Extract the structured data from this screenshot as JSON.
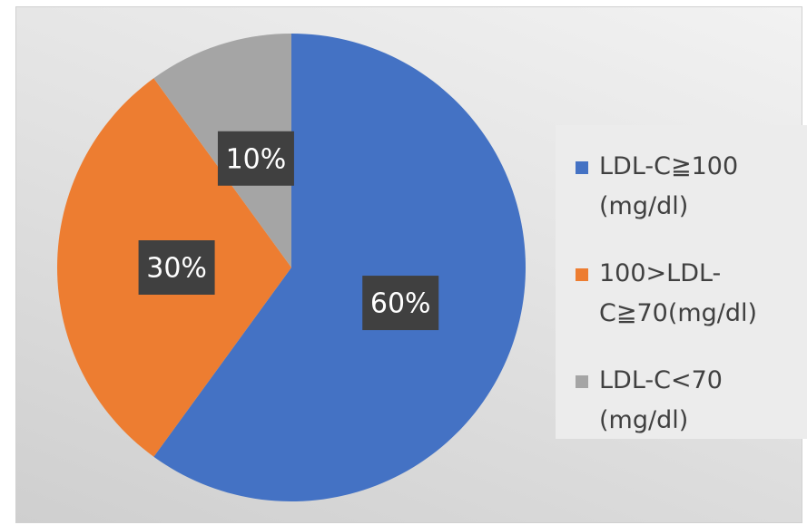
{
  "chart_data": {
    "type": "pie",
    "categories": [
      "LDL-C≧100 (mg/dl)",
      "100>LDL-C≧70(mg/dl)",
      "LDL-C<70 (mg/dl)"
    ],
    "values": [
      60,
      30,
      10
    ],
    "value_labels": [
      "60%",
      "30%",
      "10%"
    ],
    "colors": [
      "#4472c4",
      "#ed7d31",
      "#a5a5a5"
    ],
    "legend": "right"
  }
}
